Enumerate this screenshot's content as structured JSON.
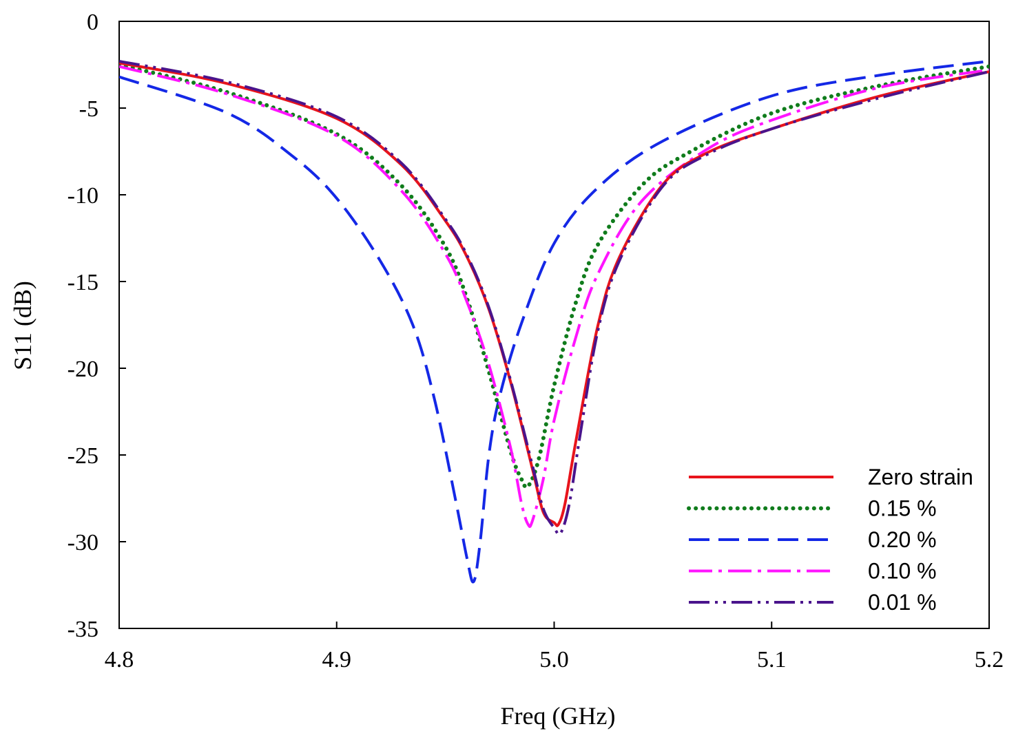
{
  "chart_data": {
    "type": "line",
    "title": "",
    "xlabel": "Freq (GHz)",
    "ylabel": "S11 (dB)",
    "xlim": [
      4.8,
      5.2
    ],
    "ylim": [
      -35,
      0
    ],
    "xticks": [
      4.8,
      4.9,
      5.0,
      5.1,
      5.2
    ],
    "xtick_labels": [
      "4.8",
      "4.9",
      "5.0",
      "5.1",
      "5.2"
    ],
    "yticks": [
      0,
      -5,
      -10,
      -15,
      -20,
      -25,
      -30,
      -35
    ],
    "ytick_labels": [
      "0",
      "-5",
      "-10",
      "-15",
      "-20",
      "-25",
      "-30",
      "-35"
    ],
    "grid": false,
    "legend_position": "bottom-right",
    "series": [
      {
        "name": "Zero strain",
        "color": "#e8141c",
        "style": "solid",
        "x": [
          4.8,
          4.85,
          4.9,
          4.93,
          4.95,
          4.96,
          4.97,
          4.98,
          4.99,
          4.995,
          5.0,
          5.002,
          5.005,
          5.01,
          5.02,
          5.03,
          5.05,
          5.07,
          5.1,
          5.15,
          5.2
        ],
        "y": [
          -2.4,
          -3.6,
          -5.6,
          -8.3,
          -11.5,
          -13.6,
          -16.6,
          -20.8,
          -25.8,
          -28.3,
          -28.9,
          -29.0,
          -27.8,
          -24.2,
          -17.6,
          -13.6,
          -9.4,
          -7.6,
          -6.2,
          -4.3,
          -2.9
        ]
      },
      {
        "name": "0.15 %",
        "color": "#107c1c",
        "style": "dotted",
        "x": [
          4.8,
          4.85,
          4.9,
          4.93,
          4.95,
          4.96,
          4.97,
          4.98,
          4.985,
          4.988,
          4.993,
          5.0,
          5.01,
          5.02,
          5.04,
          5.06,
          5.1,
          5.15,
          5.2
        ],
        "y": [
          -2.5,
          -4.1,
          -6.5,
          -9.5,
          -13.0,
          -16.0,
          -20.2,
          -24.8,
          -26.4,
          -26.8,
          -25.2,
          -21.0,
          -16.2,
          -12.9,
          -9.5,
          -7.7,
          -5.3,
          -3.7,
          -2.6
        ]
      },
      {
        "name": "0.20 %",
        "color": "#1428e6",
        "style": "dashed",
        "x": [
          4.8,
          4.85,
          4.88,
          4.9,
          4.92,
          4.935,
          4.945,
          4.955,
          4.96,
          4.963,
          4.966,
          4.97,
          4.975,
          4.985,
          5.0,
          5.02,
          5.05,
          5.1,
          5.15,
          5.2
        ],
        "y": [
          -3.2,
          -5.3,
          -7.8,
          -10.2,
          -13.8,
          -17.5,
          -21.8,
          -27.8,
          -31.0,
          -32.3,
          -30.0,
          -25.0,
          -21.6,
          -17.4,
          -12.8,
          -9.6,
          -6.9,
          -4.3,
          -3.1,
          -2.3
        ]
      },
      {
        "name": "0.10 %",
        "color": "#ff14ff",
        "style": "dash-dot",
        "x": [
          4.8,
          4.85,
          4.9,
          4.93,
          4.95,
          4.96,
          4.97,
          4.98,
          4.985,
          4.988,
          4.99,
          4.995,
          5.0,
          5.01,
          5.02,
          5.04,
          5.07,
          5.1,
          5.15,
          5.2
        ],
        "y": [
          -2.6,
          -4.2,
          -6.6,
          -9.8,
          -13.4,
          -16.2,
          -19.8,
          -24.6,
          -27.8,
          -29.0,
          -28.8,
          -26.4,
          -23.0,
          -18.2,
          -14.6,
          -10.4,
          -7.4,
          -5.7,
          -3.8,
          -2.8
        ]
      },
      {
        "name": "0.01 %",
        "color": "#4a148c",
        "style": "dash-dot-dot",
        "x": [
          4.8,
          4.85,
          4.9,
          4.93,
          4.95,
          4.96,
          4.97,
          4.98,
          4.99,
          4.995,
          5.0,
          5.003,
          5.007,
          5.012,
          5.02,
          5.03,
          5.05,
          5.07,
          5.1,
          5.15,
          5.2
        ],
        "y": [
          -2.3,
          -3.5,
          -5.5,
          -8.2,
          -11.4,
          -13.5,
          -16.5,
          -20.7,
          -25.6,
          -28.1,
          -29.2,
          -29.5,
          -27.8,
          -23.8,
          -17.9,
          -13.8,
          -9.5,
          -7.7,
          -6.2,
          -4.4,
          -2.9
        ]
      }
    ]
  }
}
